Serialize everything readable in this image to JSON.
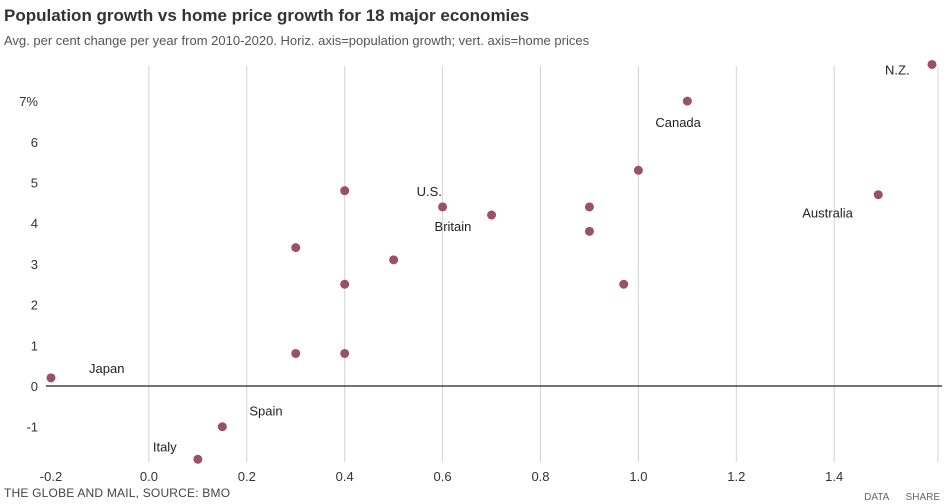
{
  "title": "Population growth vs home price growth for 18 major economies",
  "subtitle": "Avg. per cent change per year from 2010-2020. Horiz. axis=population growth; vert. axis=home prices",
  "footer": {
    "source": "THE GLOBE AND MAIL, SOURCE: BMO",
    "data_link": "DATA",
    "share_link": "SHARE"
  },
  "colors": {
    "point": "#9a5068",
    "grid": "#d4d4d4",
    "zero_line": "#222222"
  },
  "chart_data": {
    "type": "scatter",
    "title": "Population growth vs home price growth for 18 major economies",
    "subtitle": "Avg. per cent change per year from 2010-2020. Horiz. axis=population growth; vert. axis=home prices",
    "xlabel": "",
    "ylabel": "",
    "xlim": [
      -0.2,
      1.6
    ],
    "ylim": [
      -1.8,
      8.0
    ],
    "x_ticks": [
      -0.2,
      0.0,
      0.2,
      0.4,
      0.6,
      0.8,
      1.0,
      1.2,
      1.4
    ],
    "x_tick_labels": [
      "-0.2",
      "0.0",
      "0.2",
      "0.4",
      "0.6",
      "0.8",
      "1.0",
      "1.2",
      "1.4"
    ],
    "y_ticks": [
      -1,
      0,
      1,
      2,
      3,
      4,
      5,
      6,
      7
    ],
    "y_tick_labels": [
      "-1",
      "0",
      "1",
      "2",
      "3",
      "4",
      "5",
      "6",
      "7%"
    ],
    "grid": "vertical",
    "points": [
      {
        "x": -0.2,
        "y": 0.2,
        "label": "Japan"
      },
      {
        "x": 0.15,
        "y": -1.0,
        "label": "Spain"
      },
      {
        "x": 0.1,
        "y": -1.8,
        "label": "Italy"
      },
      {
        "x": 0.3,
        "y": 3.4,
        "label": ""
      },
      {
        "x": 0.3,
        "y": 0.8,
        "label": ""
      },
      {
        "x": 0.4,
        "y": 4.8,
        "label": ""
      },
      {
        "x": 0.4,
        "y": 2.5,
        "label": ""
      },
      {
        "x": 0.4,
        "y": 0.8,
        "label": ""
      },
      {
        "x": 0.5,
        "y": 3.1,
        "label": ""
      },
      {
        "x": 0.6,
        "y": 4.4,
        "label": "U.S."
      },
      {
        "x": 0.7,
        "y": 4.2,
        "label": "Britain"
      },
      {
        "x": 0.9,
        "y": 4.4,
        "label": ""
      },
      {
        "x": 0.9,
        "y": 3.8,
        "label": ""
      },
      {
        "x": 0.97,
        "y": 2.5,
        "label": ""
      },
      {
        "x": 1.0,
        "y": 5.3,
        "label": ""
      },
      {
        "x": 1.1,
        "y": 7.0,
        "label": "Canada"
      },
      {
        "x": 1.49,
        "y": 4.7,
        "label": "Australia"
      },
      {
        "x": 1.6,
        "y": 7.9,
        "label": "N.Z."
      }
    ]
  }
}
